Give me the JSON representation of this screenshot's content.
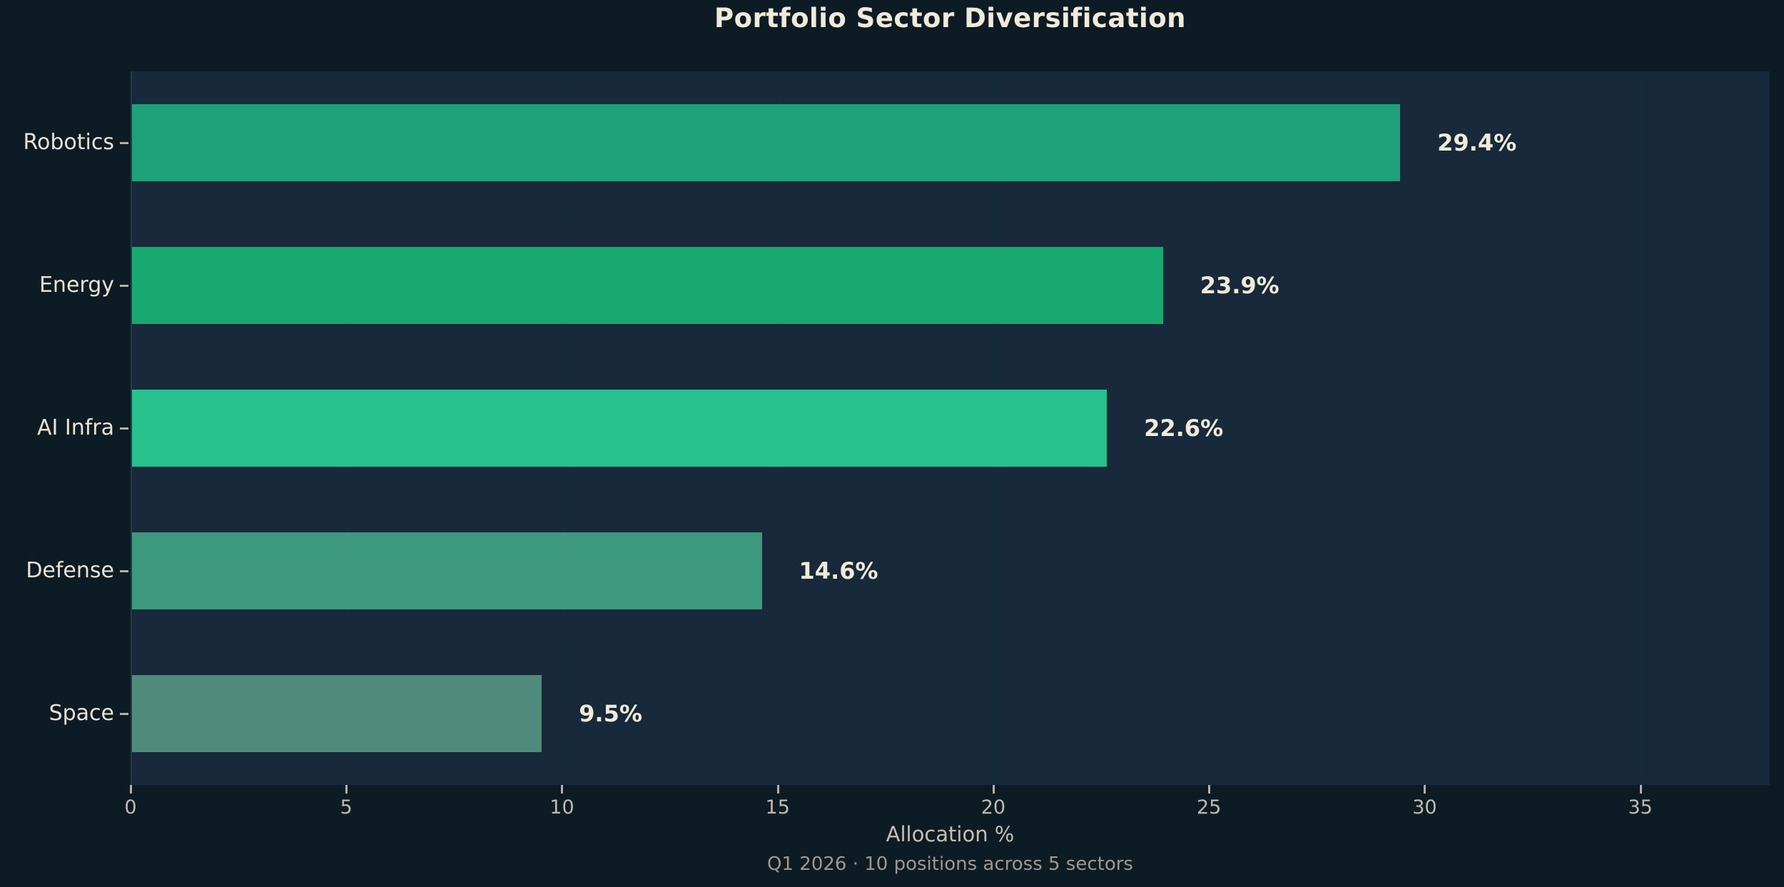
{
  "chart": {
    "title": "Portfolio Sector Diversification",
    "xlabel": "Allocation %",
    "subtitle": "Q1 2026 · 10 positions across 5 sectors"
  },
  "colors": {
    "figure_bg": "#0d1b25",
    "plot_bg": "#17293a",
    "title_text": "#f0ebd9",
    "category_text": "#eae4d3",
    "value_label_text": "#f0ead8",
    "tick_label_text": "#bfbbab",
    "xlabel_text": "#c4c0b0",
    "subtitle_text": "#9d998c",
    "tick_mark": "#b5b1a2",
    "gridline": "#132d3c",
    "spine": "#263b4d"
  },
  "chart_data": {
    "type": "bar",
    "orientation": "horizontal",
    "title": "Portfolio Sector Diversification",
    "xlabel": "Allocation %",
    "ylabel": "",
    "subtitle": "Q1 2026 · 10 positions across 5 sectors",
    "categories": [
      "Robotics",
      "Energy",
      "AI Infra",
      "Defense",
      "Space"
    ],
    "values": [
      29.4,
      23.9,
      22.6,
      14.6,
      9.5
    ],
    "value_labels": [
      "29.4%",
      "23.9%",
      "22.6%",
      "14.6%",
      "9.5%"
    ],
    "bar_colors": [
      "#1fa179",
      "#17a96f",
      "#27c28d",
      "#3d997e",
      "#4f8b7a"
    ],
    "xlim": [
      0,
      38
    ],
    "xticks": [
      0,
      5,
      10,
      15,
      20,
      25,
      30,
      35
    ],
    "grid": "vertical-subtle",
    "legend": "none"
  }
}
